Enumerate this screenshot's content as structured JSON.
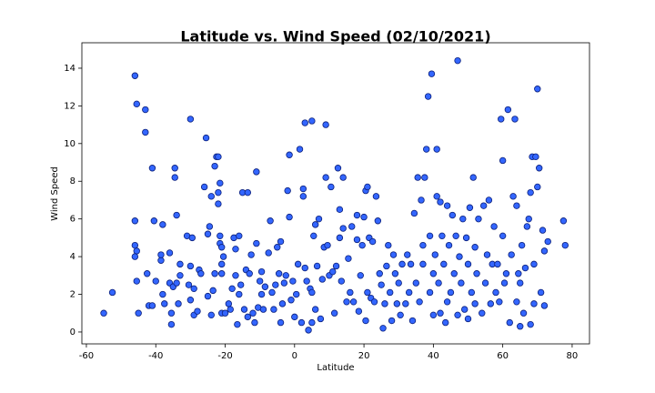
{
  "chart_data": {
    "type": "scatter",
    "title": "Latitude vs. Wind Speed (02/10/2021)",
    "x_label": "Latitude",
    "y_label": "Wind Speed",
    "color": "#3366ff",
    "edgecolor": "#0b1f7a",
    "xlim": [
      -61.3,
      85
    ],
    "ylim": [
      -0.63,
      15.35
    ],
    "xticks": [
      -60,
      -40,
      -20,
      0,
      20,
      40,
      60,
      80
    ],
    "yticks": [
      0,
      2,
      4,
      6,
      8,
      10,
      12,
      14
    ],
    "grid": false,
    "x": [
      -55,
      -52.5,
      -46,
      -45.5,
      -46,
      -46,
      -45.5,
      -46,
      -45.5,
      -45,
      -43,
      -43,
      -42.5,
      -42,
      -41,
      -41,
      -40.5,
      -40,
      -38.5,
      -38.5,
      -38,
      -38,
      -37.5,
      -36,
      -36,
      -35.5,
      -35.5,
      -35,
      -34.5,
      -34.5,
      -34,
      -34,
      -33.5,
      -33,
      -33,
      -31,
      -30.5,
      -30,
      -30,
      -30,
      -29.5,
      -29,
      -29,
      -28,
      -27.5,
      -27,
      -26,
      -25.5,
      -25,
      -25,
      -24.5,
      -24,
      -24,
      -23.5,
      -23,
      -23,
      -22.5,
      -22,
      -22,
      -22,
      -21.5,
      -21.5,
      -21.5,
      -21,
      -21,
      -21,
      -21,
      -20.5,
      -20,
      -19,
      -18.5,
      -18,
      -17.5,
      -17,
      -17,
      -16.5,
      -16,
      -16,
      -15.5,
      -15,
      -14.5,
      -14,
      -13.5,
      -13.5,
      -13,
      -12.5,
      -12,
      -11.5,
      -11,
      -11,
      -10.5,
      -10,
      -9.5,
      -9.5,
      -9,
      -8.5,
      -7.5,
      -7,
      -6.5,
      -6,
      -5.5,
      -5,
      -4.5,
      -4,
      -4,
      -3.5,
      -3,
      -2.5,
      -2,
      -1.5,
      -1.5,
      -1,
      -0.5,
      0,
      0.5,
      1,
      1.5,
      2,
      2.5,
      2.5,
      3,
      3,
      3.5,
      4,
      4.5,
      5,
      5,
      5,
      5.5,
      6,
      6,
      6.5,
      7,
      7.5,
      8,
      8.5,
      9,
      9,
      9.5,
      10,
      10.5,
      11,
      11.5,
      12,
      12.5,
      13,
      13,
      13.5,
      14,
      14,
      15,
      15.5,
      16,
      16.5,
      17,
      18,
      18,
      18.5,
      19,
      19.5,
      20,
      20.5,
      20.5,
      21,
      21,
      21.5,
      22,
      22.5,
      23,
      23.5,
      24,
      24.5,
      25,
      25.5,
      26,
      26.5,
      27,
      27.5,
      28,
      28.5,
      29,
      29.5,
      30,
      30.5,
      31,
      32,
      32.5,
      33,
      33.5,
      34,
      34.5,
      35,
      35.5,
      36,
      36.5,
      37,
      37,
      37.5,
      38,
      38.5,
      39,
      39,
      39.5,
      40,
      40,
      40.5,
      41,
      41,
      41.5,
      42,
      42,
      42.5,
      43,
      43.5,
      44,
      44,
      44.5,
      45,
      45.5,
      46,
      46.5,
      47,
      47,
      47.5,
      48,
      48.5,
      49,
      49.5,
      50,
      50,
      50.5,
      51,
      51.5,
      52,
      52,
      52.5,
      53,
      54,
      54.5,
      55,
      55.5,
      56,
      56.5,
      57,
      57.5,
      58,
      58.5,
      59,
      59.5,
      60,
      60,
      60.5,
      61,
      61.5,
      62,
      62.5,
      63,
      63.5,
      64,
      64,
      64.5,
      65,
      65,
      65.5,
      66,
      66.5,
      67,
      67.5,
      68,
      68,
      68.5,
      69,
      69,
      69.5,
      70,
      70,
      70.5,
      71,
      71.5,
      72,
      72,
      73,
      77.5,
      78
    ],
    "values": [
      1.0,
      2.1,
      13.6,
      12.1,
      5.9,
      4.6,
      4.3,
      4.0,
      2.7,
      1.0,
      11.8,
      10.6,
      3.1,
      1.4,
      8.7,
      1.4,
      5.9,
      2.7,
      3.8,
      4.1,
      5.7,
      2.0,
      1.5,
      4.2,
      2.6,
      0.4,
      1.0,
      2.4,
      8.7,
      8.2,
      6.2,
      2.6,
      1.5,
      3.0,
      3.6,
      5.1,
      2.5,
      11.3,
      1.7,
      3.5,
      5.0,
      0.9,
      2.3,
      1.1,
      3.3,
      3.1,
      7.7,
      10.3,
      1.9,
      5.2,
      5.6,
      7.2,
      0.9,
      2.2,
      8.8,
      3.1,
      9.3,
      7.4,
      9.3,
      6.8,
      7.9,
      5.1,
      4.7,
      4.5,
      3.6,
      3.1,
      1.0,
      4.0,
      1.0,
      1.5,
      1.2,
      2.3,
      5.0,
      4.4,
      3.0,
      0.4,
      2.0,
      5.1,
      2.5,
      7.4,
      1.2,
      3.3,
      0.8,
      7.4,
      3.1,
      4.1,
      1.0,
      0.5,
      4.7,
      8.5,
      1.3,
      2.7,
      2.0,
      3.2,
      1.2,
      2.4,
      4.2,
      5.9,
      2.1,
      1.2,
      2.5,
      4.5,
      3.1,
      4.8,
      0.5,
      1.5,
      2.6,
      3.0,
      7.5,
      9.4,
      6.1,
      1.7,
      2.7,
      0.8,
      2.0,
      3.6,
      9.7,
      0.5,
      7.2,
      7.6,
      11.1,
      3.4,
      2.7,
      0.1,
      2.3,
      0.5,
      2.1,
      11.2,
      5.1,
      5.7,
      1.2,
      3.5,
      6.0,
      0.7,
      2.8,
      4.5,
      11.0,
      8.2,
      4.6,
      3.0,
      7.7,
      3.2,
      1.0,
      3.5,
      8.7,
      5.0,
      6.5,
      2.7,
      5.5,
      8.2,
      1.6,
      3.9,
      2.1,
      5.6,
      1.6,
      4.9,
      6.2,
      1.1,
      3.0,
      4.6,
      6.1,
      7.5,
      0.6,
      7.7,
      2.1,
      5.0,
      1.8,
      4.8,
      1.6,
      7.2,
      5.9,
      3.1,
      2.5,
      0.2,
      1.5,
      3.5,
      4.6,
      2.1,
      0.6,
      4.1,
      3.1,
      1.5,
      2.6,
      0.9,
      3.6,
      1.5,
      4.1,
      2.1,
      3.6,
      0.6,
      6.3,
      2.6,
      8.2,
      1.6,
      7.0,
      3.6,
      4.6,
      8.2,
      9.7,
      12.5,
      2.1,
      5.1,
      13.7,
      0.9,
      3.1,
      4.1,
      7.2,
      9.7,
      2.6,
      6.9,
      1.0,
      5.1,
      3.6,
      0.5,
      6.7,
      1.6,
      4.6,
      2.1,
      6.2,
      3.1,
      5.1,
      14.4,
      0.9,
      4.0,
      2.6,
      6.0,
      1.2,
      5.0,
      3.6,
      0.7,
      6.6,
      2.1,
      8.2,
      1.5,
      4.5,
      3.1,
      6.0,
      1.0,
      6.7,
      2.6,
      4.1,
      7.0,
      1.5,
      3.6,
      5.6,
      2.1,
      3.6,
      1.6,
      11.3,
      5.1,
      9.1,
      2.6,
      3.1,
      11.8,
      0.5,
      4.1,
      7.2,
      11.3,
      1.6,
      6.7,
      3.1,
      0.3,
      2.6,
      4.6,
      1.0,
      3.4,
      5.6,
      6.0,
      7.4,
      0.4,
      9.3,
      1.5,
      3.6,
      9.3,
      12.9,
      7.7,
      8.7,
      2.1,
      5.4,
      4.3,
      1.4,
      4.8,
      5.9,
      4.6
    ]
  }
}
